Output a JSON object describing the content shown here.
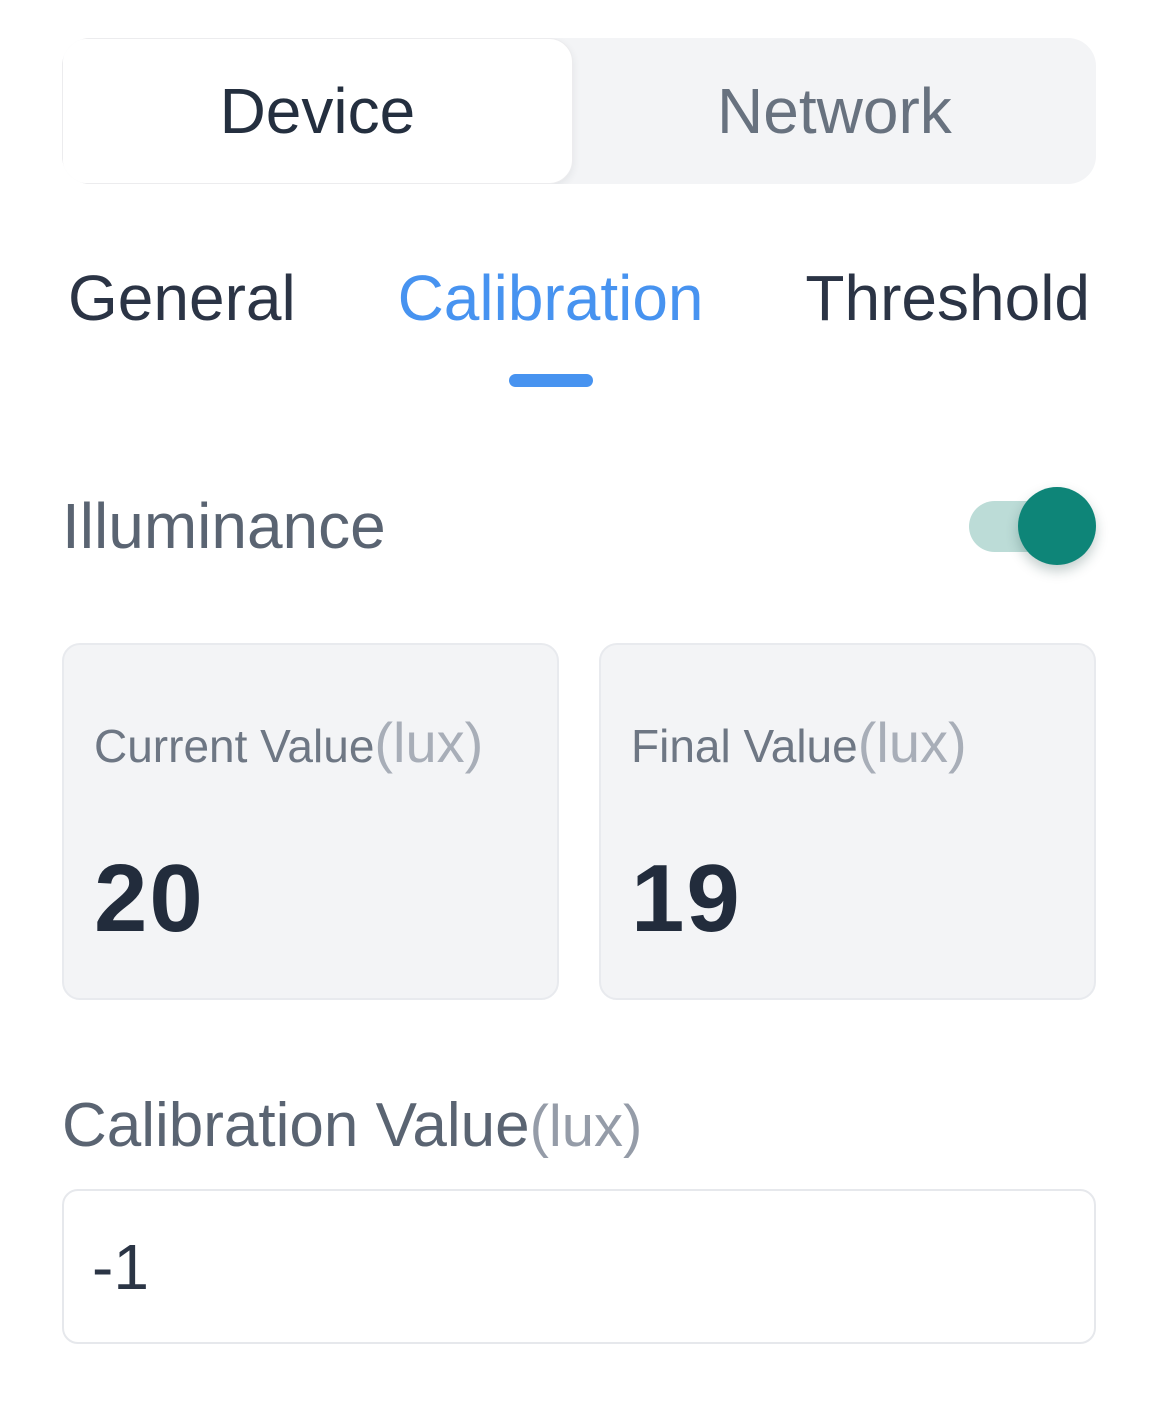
{
  "segmented": {
    "items": [
      {
        "label": "Device",
        "selected": true
      },
      {
        "label": "Network",
        "selected": false
      }
    ]
  },
  "tabs": {
    "items": [
      {
        "label": "General",
        "active": false
      },
      {
        "label": "Calibration",
        "active": true
      },
      {
        "label": "Threshold",
        "active": false
      }
    ]
  },
  "illuminance": {
    "label": "Illuminance",
    "toggle_state": "on"
  },
  "readings": [
    {
      "label": "Current Value",
      "unit": "(lux)",
      "value": "20"
    },
    {
      "label": "Final Value",
      "unit": "(lux)",
      "value": "19"
    }
  ],
  "calibration": {
    "label": "Calibration Value",
    "unit": "(lux)",
    "value": "-1"
  },
  "colors": {
    "accent_blue": "#4793f0",
    "toggle_knob_teal": "#0e8578",
    "toggle_track_teal": "#bcdcd7",
    "text_dark": "#2b3445",
    "text_gray": "#5a6472",
    "card_bg": "#f3f4f6"
  }
}
